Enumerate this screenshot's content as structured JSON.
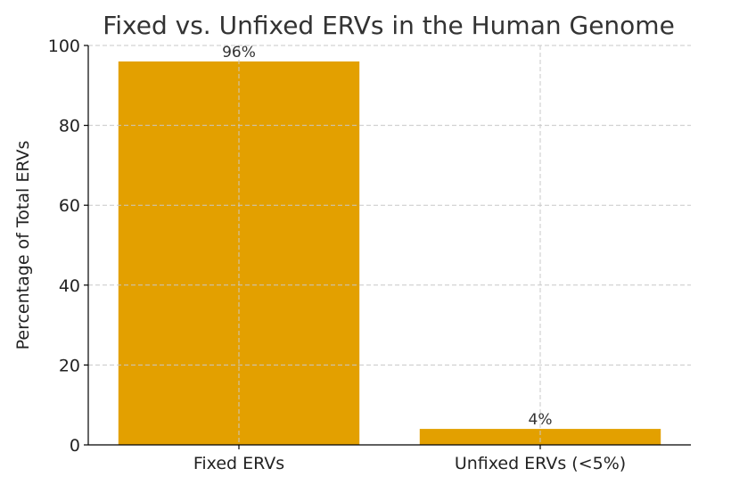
{
  "chart_data": {
    "type": "bar",
    "title": "Fixed vs. Unfixed ERVs in the Human Genome",
    "xlabel": "",
    "ylabel": "Percentage of Total ERVs",
    "categories": [
      "Fixed ERVs",
      "Unfixed ERVs (<5%)"
    ],
    "values": [
      96,
      4
    ],
    "data_labels": [
      "96%",
      "4%"
    ],
    "ylim": [
      0,
      100
    ],
    "yticks": [
      0,
      20,
      40,
      60,
      80,
      100
    ],
    "grid": true,
    "bar_color": "#e3a000"
  }
}
